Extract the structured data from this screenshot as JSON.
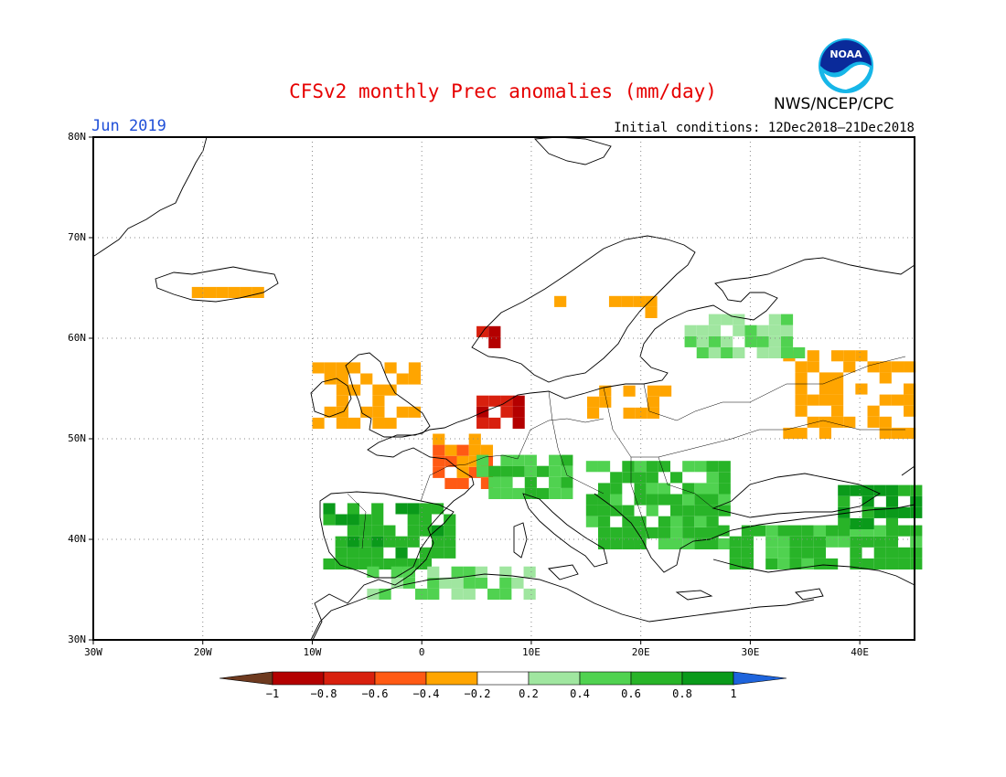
{
  "title": "CFSv2 monthly Prec anomalies (mm/day)",
  "month": "Jun 2019",
  "initial_conditions": "Initial conditions: 12Dec2018–21Dec2018",
  "agency": "NWS/NCEP/CPC",
  "logo_text": "NOAA",
  "axes": {
    "lat_ticks": [
      "80N",
      "70N",
      "60N",
      "50N",
      "40N",
      "30N"
    ],
    "lon_ticks": [
      "30W",
      "20W",
      "10W",
      "0",
      "10E",
      "20E",
      "30E",
      "40E"
    ],
    "lat_range": [
      30,
      80
    ],
    "lon_range": [
      -30,
      45
    ],
    "grid": "dotted"
  },
  "colorbar": {
    "ticks": [
      "−1",
      "−0.8",
      "−0.6",
      "−0.4",
      "−0.2",
      "0.2",
      "0.4",
      "0.6",
      "0.8",
      "1"
    ],
    "colors": [
      "#6e3a1f",
      "#b40000",
      "#d8200e",
      "#ff5a14",
      "#ffa500",
      "#ffffff",
      "#a0e6a0",
      "#50d250",
      "#28b428",
      "#0a9a1a",
      "#1e64dc"
    ]
  },
  "chart_data": {
    "type": "heatmap",
    "variable": "Prec anomalies (mm/day)",
    "regions": [
      {
        "name": "Iceland",
        "lon": [
          -21,
          -15
        ],
        "lat": [
          64,
          65
        ],
        "anomaly": -0.3
      },
      {
        "name": "Norway west coast",
        "lon": [
          5,
          7
        ],
        "lat": [
          59,
          61
        ],
        "anomaly": -0.9
      },
      {
        "name": "Central Norway",
        "lon": [
          11,
          15
        ],
        "lat": [
          62,
          64
        ],
        "anomaly": -0.3
      },
      {
        "name": "Sweden/Finland",
        "lon": [
          16,
          22
        ],
        "lat": [
          62,
          64
        ],
        "anomaly": -0.3
      },
      {
        "name": "Netherlands/N Germany",
        "lon": [
          5,
          9
        ],
        "lat": [
          51,
          54
        ],
        "anomaly": -0.8
      },
      {
        "name": "France north",
        "lon": [
          1,
          6
        ],
        "lat": [
          45,
          50
        ],
        "anomaly": -0.5
      },
      {
        "name": "British Isles",
        "lon": [
          -10,
          0
        ],
        "lat": [
          51,
          57
        ],
        "anomaly": -0.3
      },
      {
        "name": "Baltic/Poland",
        "lon": [
          14,
          22
        ],
        "lat": [
          52,
          55
        ],
        "anomaly": -0.3
      },
      {
        "name": "Western Russia",
        "lon": [
          33,
          45
        ],
        "lat": [
          50,
          58
        ],
        "anomaly": -0.3
      },
      {
        "name": "Iberia",
        "lon": [
          -9,
          2
        ],
        "lat": [
          37,
          43
        ],
        "anomaly": 0.7
      },
      {
        "name": "Alps",
        "lon": [
          5,
          13
        ],
        "lat": [
          44,
          48
        ],
        "anomaly": 0.5
      },
      {
        "name": "Balkans",
        "lon": [
          15,
          28
        ],
        "lat": [
          39,
          47
        ],
        "anomaly": 0.6
      },
      {
        "name": "Turkey",
        "lon": [
          27,
          45
        ],
        "lat": [
          37,
          41
        ],
        "anomaly": 0.6
      },
      {
        "name": "Black Sea / Caucasus",
        "lon": [
          38,
          45
        ],
        "lat": [
          41,
          45
        ],
        "anomaly": 0.8
      },
      {
        "name": "North Africa",
        "lon": [
          -5,
          11
        ],
        "lat": [
          34,
          37
        ],
        "anomaly": 0.4
      },
      {
        "name": "Finland/NW Russia",
        "lon": [
          24,
          34
        ],
        "lat": [
          58,
          62
        ],
        "anomaly": 0.3
      }
    ]
  }
}
